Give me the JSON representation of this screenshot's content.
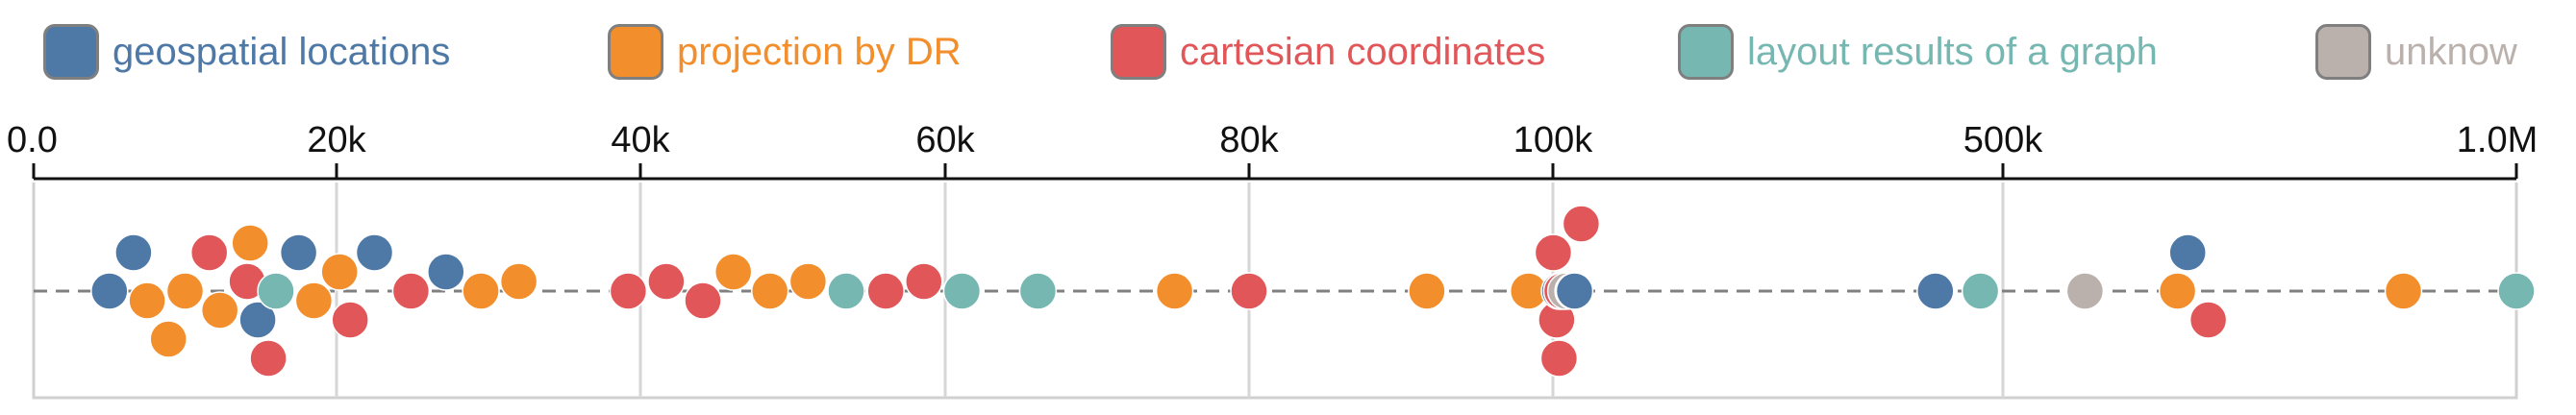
{
  "legend": [
    {
      "label": "geospatial locations",
      "color": "#4e79a7",
      "key": "geo"
    },
    {
      "label": "projection by DR",
      "color": "#f28e2b",
      "key": "dr"
    },
    {
      "label": "cartesian coordinates",
      "color": "#e15759",
      "key": "cart"
    },
    {
      "label": "layout results of a graph",
      "color": "#76b7b2",
      "key": "graph"
    },
    {
      "label": "unknow",
      "color": "#bab0ac",
      "key": "unk"
    }
  ],
  "chart_data": {
    "type": "scatter",
    "axis_ticks": [
      "0.0",
      "20k",
      "40k",
      "60k",
      "80k",
      "100k",
      "500k",
      "1.0M"
    ],
    "tick_values": [
      0,
      20000,
      40000,
      60000,
      80000,
      100000,
      500000,
      1000000
    ],
    "scale": "piecewise (linear 0–100k, compressed 100k–500k and 500k–1.0M)",
    "grid": true,
    "legend_position": "top",
    "series": [
      {
        "key": "geo",
        "name": "geospatial locations",
        "x": [
          5000,
          6600,
          14800,
          17500,
          22500,
          27200,
          106000,
          119200,
          440000,
          680000
        ]
      },
      {
        "key": "dr",
        "name": "projection by DR",
        "x": [
          7500,
          8900,
          10000,
          12300,
          14300,
          18500,
          20200,
          29500,
          32000,
          46100,
          48500,
          51000,
          75100,
          91700,
          98400,
          118000,
          670000,
          890000
        ]
      },
      {
        "key": "cart",
        "name": "cartesian coordinates",
        "x": [
          11600,
          14100,
          15500,
          20900,
          24900,
          39200,
          41700,
          44100,
          56100,
          58600,
          80000,
          100300,
          103300,
          105500,
          108000,
          125100,
          700000
        ]
      },
      {
        "key": "graph",
        "name": "layout results of a graph",
        "x": [
          16000,
          53500,
          61100,
          66100,
          480000,
          1000000
        ]
      },
      {
        "key": "unk",
        "name": "unknow",
        "x": [
          111600,
          580000
        ]
      }
    ]
  }
}
